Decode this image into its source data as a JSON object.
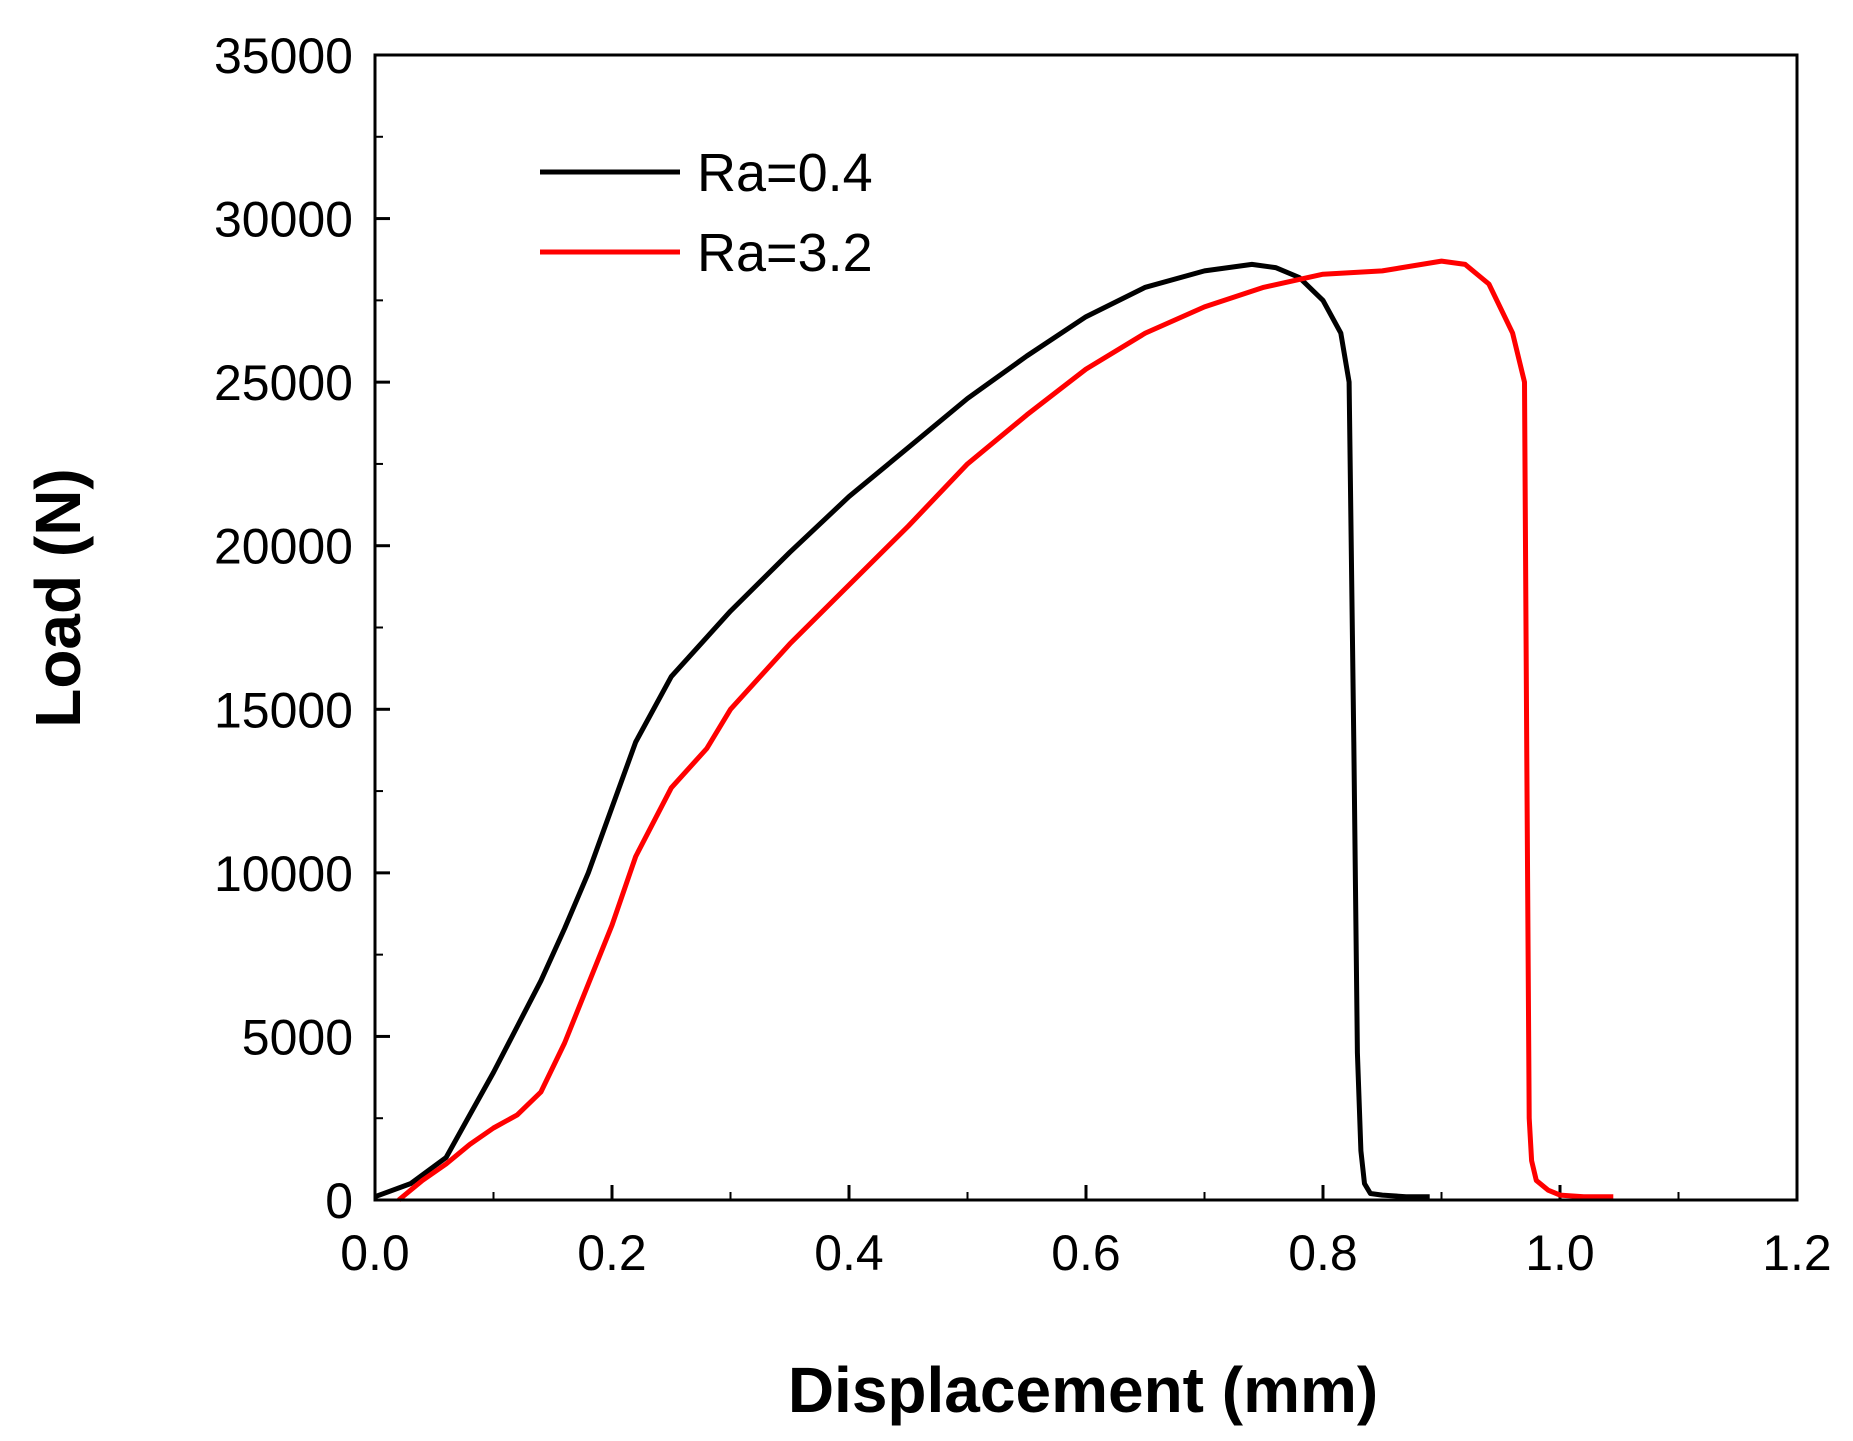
{
  "chart_data": {
    "type": "line",
    "title": "",
    "xlabel": "Displacement (mm)",
    "ylabel": "Load (N)",
    "xlim": [
      0.0,
      1.2
    ],
    "ylim": [
      0,
      35000
    ],
    "xticks": [
      "0.0",
      "0.2",
      "0.4",
      "0.6",
      "0.8",
      "1.0",
      "1.2"
    ],
    "yticks": [
      "0",
      "5000",
      "10000",
      "15000",
      "20000",
      "25000",
      "30000",
      "35000"
    ],
    "grid": false,
    "legend_position": "top-left",
    "series": [
      {
        "name": "Ra=0.4",
        "color": "#000000",
        "x": [
          0.0,
          0.03,
          0.06,
          0.08,
          0.1,
          0.12,
          0.14,
          0.16,
          0.18,
          0.2,
          0.22,
          0.25,
          0.28,
          0.3,
          0.35,
          0.4,
          0.45,
          0.5,
          0.55,
          0.6,
          0.65,
          0.7,
          0.74,
          0.76,
          0.78,
          0.8,
          0.815,
          0.822,
          0.826,
          0.829,
          0.832,
          0.835,
          0.84,
          0.85,
          0.87,
          0.89
        ],
        "y": [
          100,
          500,
          1300,
          2600,
          3900,
          5300,
          6700,
          8300,
          10000,
          12000,
          14000,
          16000,
          17200,
          18000,
          19800,
          21500,
          23000,
          24500,
          25800,
          27000,
          27900,
          28400,
          28600,
          28500,
          28200,
          27500,
          26500,
          25000,
          14000,
          4500,
          1500,
          500,
          200,
          150,
          100,
          100
        ]
      },
      {
        "name": "Ra=3.2",
        "color": "#ff0000",
        "x": [
          0.02,
          0.04,
          0.06,
          0.08,
          0.1,
          0.12,
          0.14,
          0.16,
          0.18,
          0.2,
          0.22,
          0.25,
          0.28,
          0.3,
          0.35,
          0.4,
          0.45,
          0.5,
          0.55,
          0.6,
          0.65,
          0.7,
          0.75,
          0.8,
          0.85,
          0.9,
          0.92,
          0.94,
          0.96,
          0.97,
          0.972,
          0.974,
          0.976,
          0.98,
          0.99,
          1.0,
          1.02,
          1.045
        ],
        "y": [
          0,
          600,
          1100,
          1700,
          2200,
          2600,
          3300,
          4800,
          6600,
          8400,
          10500,
          12600,
          13800,
          15000,
          17000,
          18800,
          20600,
          22500,
          24000,
          25400,
          26500,
          27300,
          27900,
          28300,
          28400,
          28700,
          28600,
          28000,
          26500,
          25000,
          13500,
          2500,
          1200,
          600,
          300,
          150,
          100,
          100
        ]
      }
    ]
  }
}
